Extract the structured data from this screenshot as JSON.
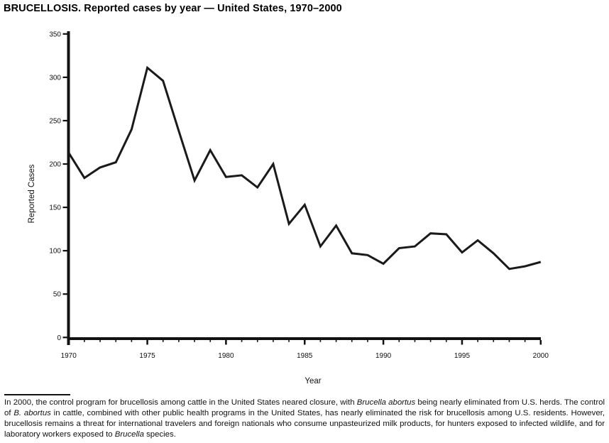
{
  "title": "BRUCELLOSIS. Reported cases by year — United States, 1970–2000",
  "chart_data": {
    "type": "line",
    "title": "BRUCELLOSIS. Reported cases by year — United States, 1970–2000",
    "xlabel": "Year",
    "ylabel": "Reported Cases",
    "ylim": [
      0,
      350
    ],
    "ytick_interval": 50,
    "ytick_labels": [
      "0",
      "50",
      "100",
      "150",
      "200",
      "250",
      "300",
      "350"
    ],
    "xlim": [
      1970,
      2000
    ],
    "xtick_major_interval": 5,
    "xtick_minor_interval": 1,
    "xtick_labels": [
      "1970",
      "1975",
      "1980",
      "1985",
      "1990",
      "1995",
      "2000"
    ],
    "grid": false,
    "legend": "none",
    "line_color": "#1a1a1a",
    "x": [
      1970,
      1971,
      1972,
      1973,
      1974,
      1975,
      1976,
      1977,
      1978,
      1979,
      1980,
      1981,
      1982,
      1983,
      1984,
      1985,
      1986,
      1987,
      1988,
      1989,
      1990,
      1991,
      1992,
      1993,
      1994,
      1995,
      1996,
      1997,
      1998,
      1999,
      2000
    ],
    "values": [
      213,
      184,
      196,
      202,
      240,
      311,
      296,
      238,
      181,
      216,
      185,
      187,
      173,
      200,
      131,
      153,
      105,
      129,
      97,
      95,
      85,
      103,
      105,
      120,
      119,
      98,
      112,
      97,
      79,
      82,
      87
    ]
  },
  "footnote": {
    "segments": [
      {
        "text": "In 2000, the control program for brucellosis among cattle in the United States neared closure, with ",
        "italic": false
      },
      {
        "text": "Brucella abortus",
        "italic": true
      },
      {
        "text": " being nearly eliminated from U.S. herds. The control of ",
        "italic": false
      },
      {
        "text": "B. abortus",
        "italic": true
      },
      {
        "text": " in cattle, combined with other public health programs in the United States, has nearly eliminated the risk for brucellosis among U.S. residents. However, brucellosis remains a threat for international travelers and foreign nationals who consume unpasteurized milk products, for hunters exposed to infected wildlife, and for laboratory workers exposed to ",
        "italic": false
      },
      {
        "text": "Brucella",
        "italic": true
      },
      {
        "text": " species.",
        "italic": false
      }
    ]
  }
}
